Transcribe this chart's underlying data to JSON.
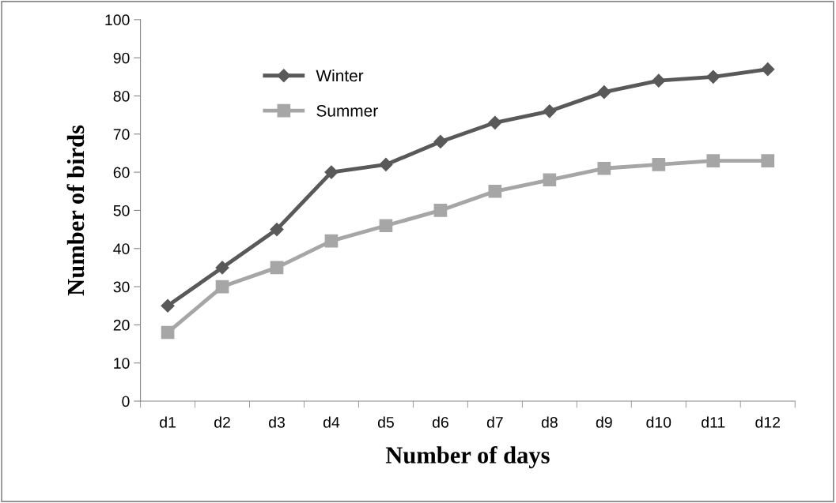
{
  "chart_data": {
    "type": "line",
    "xlabel": "Number of days",
    "ylabel": "Number of birds",
    "categories": [
      "d1",
      "d2",
      "d3",
      "d4",
      "d5",
      "d6",
      "d7",
      "d8",
      "d9",
      "d10",
      "d11",
      "d12"
    ],
    "series": [
      {
        "name": "Winter",
        "color": "#595959",
        "marker": "diamond",
        "values": [
          25,
          35,
          45,
          60,
          62,
          68,
          73,
          76,
          81,
          84,
          85,
          87
        ]
      },
      {
        "name": "Summer",
        "color": "#a6a6a6",
        "marker": "square",
        "values": [
          18,
          30,
          35,
          42,
          46,
          50,
          55,
          58,
          61,
          62,
          63,
          63
        ]
      }
    ],
    "ylim": [
      0,
      100
    ],
    "yticks": [
      0,
      10,
      20,
      30,
      40,
      50,
      60,
      70,
      80,
      90,
      100
    ],
    "grid": false,
    "legend": "top left",
    "line_style": "solid"
  }
}
